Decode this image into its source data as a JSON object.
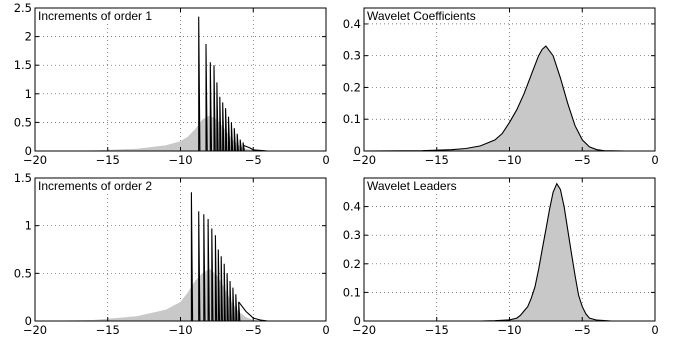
{
  "chart_data": [
    {
      "type": "area",
      "title": "Increments of order 1",
      "xlim": [
        -20,
        0
      ],
      "ylim": [
        0,
        2.5
      ],
      "xticks": [
        -20,
        -15,
        -10,
        -5,
        0
      ],
      "yticks": [
        0,
        0.5,
        1,
        1.5,
        2,
        2.5
      ],
      "grid": true,
      "fill_color": "#c8c8c8",
      "area_x": [
        -20,
        -16,
        -13,
        -11,
        -10,
        -9.5,
        -9,
        -8.5,
        -8,
        -7.5,
        -7,
        -6.5,
        -6,
        -5.5,
        -5,
        -4.5,
        -4,
        -3
      ],
      "area_y": [
        0,
        0.01,
        0.04,
        0.1,
        0.17,
        0.25,
        0.38,
        0.55,
        0.62,
        0.55,
        0.4,
        0.22,
        0.1,
        0.04,
        0.01,
        0,
        0,
        0
      ],
      "spikes_x": [
        -8.75,
        -8.25,
        -7.95,
        -7.7,
        -7.5,
        -7.3,
        -7.1,
        -6.9,
        -6.7,
        -6.5,
        -6.3,
        -6.1,
        -5.9,
        -5.7
      ],
      "spikes_y": [
        2.35,
        1.87,
        1.55,
        1.5,
        1.2,
        0.95,
        0.85,
        0.75,
        0.6,
        0.5,
        0.4,
        0.3,
        0.2,
        0.15
      ],
      "tail_x": [
        -5.7,
        -5.5,
        -5.2,
        -5,
        -4.5,
        -4
      ],
      "tail_y": [
        0.1,
        0.08,
        0.05,
        0.02,
        0.01,
        0
      ]
    },
    {
      "type": "area",
      "title": "Wavelet Coefficients",
      "xlim": [
        -20,
        0
      ],
      "ylim": [
        0,
        0.45
      ],
      "xticks": [
        -20,
        -15,
        -10,
        -5,
        0
      ],
      "yticks": [
        0,
        0.1,
        0.2,
        0.3,
        0.4
      ],
      "grid": true,
      "fill_color": "#c8c8c8",
      "x": [
        -20,
        -16,
        -14,
        -13,
        -12,
        -11,
        -10.5,
        -10,
        -9.5,
        -9,
        -8.5,
        -8,
        -7.75,
        -7.5,
        -7,
        -6.5,
        -6,
        -5.5,
        -5,
        -4.5,
        -4,
        -3.5,
        -2,
        0
      ],
      "y": [
        0,
        0.001,
        0.004,
        0.008,
        0.016,
        0.035,
        0.055,
        0.09,
        0.13,
        0.18,
        0.24,
        0.3,
        0.32,
        0.33,
        0.3,
        0.23,
        0.15,
        0.08,
        0.035,
        0.013,
        0.004,
        0.001,
        0,
        0
      ]
    },
    {
      "type": "area",
      "title": "Increments of order 2",
      "xlim": [
        -20,
        0
      ],
      "ylim": [
        0,
        1.5
      ],
      "xticks": [
        -20,
        -15,
        -10,
        -5,
        0
      ],
      "yticks": [
        0,
        0.5,
        1,
        1.5
      ],
      "grid": true,
      "fill_color": "#c8c8c8",
      "area_x": [
        -20,
        -16,
        -13,
        -11,
        -10,
        -9.5,
        -9,
        -8.5,
        -8,
        -7.5,
        -7,
        -6.5,
        -6,
        -5.5,
        -5,
        -4.5,
        -4,
        -3
      ],
      "area_y": [
        0,
        0.01,
        0.05,
        0.12,
        0.2,
        0.3,
        0.42,
        0.5,
        0.55,
        0.48,
        0.35,
        0.2,
        0.1,
        0.04,
        0.01,
        0,
        0,
        0
      ],
      "spikes_x": [
        -9.25,
        -8.75,
        -8.4,
        -8.1,
        -7.85,
        -7.6,
        -7.4,
        -7.2,
        -7,
        -6.8,
        -6.6,
        -6.4,
        -6.2,
        -6
      ],
      "spikes_y": [
        1.35,
        1.15,
        1.12,
        1.07,
        0.97,
        0.9,
        0.75,
        0.68,
        0.6,
        0.5,
        0.42,
        0.35,
        0.28,
        0.2
      ],
      "tail_x": [
        -6,
        -5.8,
        -5.5,
        -5.2,
        -5,
        -4.5,
        -4
      ],
      "tail_y": [
        0.2,
        0.16,
        0.1,
        0.06,
        0.03,
        0.01,
        0
      ]
    },
    {
      "type": "area",
      "title": "Wavelet Leaders",
      "xlim": [
        -20,
        0
      ],
      "ylim": [
        0,
        0.5
      ],
      "xticks": [
        -20,
        -15,
        -10,
        -5,
        0
      ],
      "yticks": [
        0,
        0.1,
        0.2,
        0.3,
        0.4
      ],
      "grid": true,
      "fill_color": "#c8c8c8",
      "x": [
        -20,
        -12,
        -11,
        -10,
        -9.5,
        -9.25,
        -9,
        -8.75,
        -8.5,
        -8.25,
        -8,
        -7.75,
        -7.5,
        -7.25,
        -7,
        -6.75,
        -6.5,
        -6.25,
        -6,
        -5.75,
        -5.5,
        -5.25,
        -5,
        -4.75,
        -4.5,
        -4,
        -3,
        0
      ],
      "y": [
        0,
        0,
        0.001,
        0.004,
        0.01,
        0.02,
        0.035,
        0.05,
        0.08,
        0.12,
        0.18,
        0.25,
        0.32,
        0.39,
        0.45,
        0.48,
        0.46,
        0.4,
        0.32,
        0.24,
        0.16,
        0.09,
        0.05,
        0.025,
        0.01,
        0.003,
        0,
        0
      ]
    }
  ]
}
